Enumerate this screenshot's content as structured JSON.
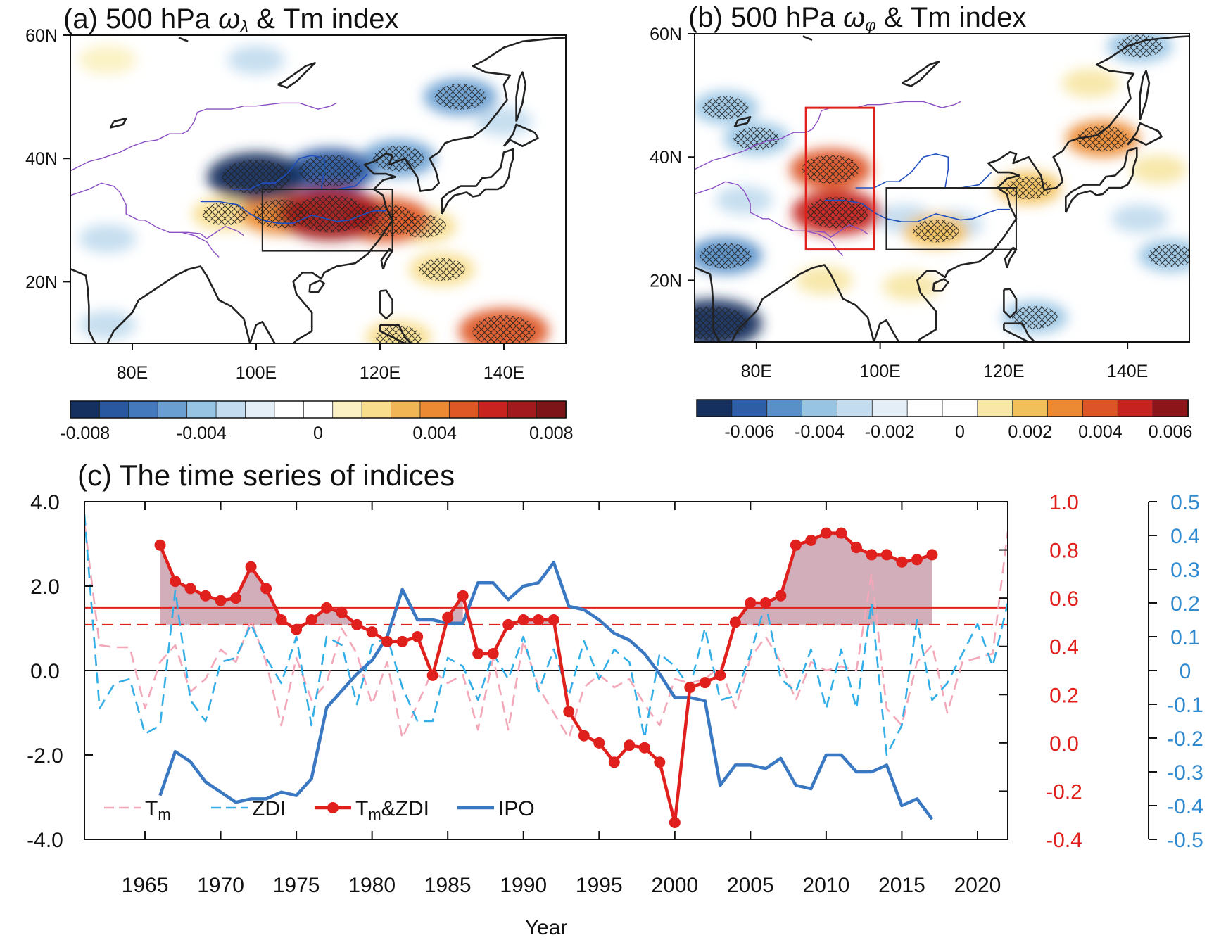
{
  "chart_data": [
    {
      "type": "heatmap",
      "panel": "a",
      "title": "(a) 500 hPa ωλ & Tm index",
      "title_prefix": "(a) 500 hPa ",
      "title_symbol": "ω",
      "title_subscript": "λ",
      "title_suffix": " & Tm index",
      "xlim": [
        70,
        150
      ],
      "ylim": [
        10,
        60
      ],
      "xticks": [
        {
          "value": 80,
          "label": "80E"
        },
        {
          "value": 100,
          "label": "100E"
        },
        {
          "value": 120,
          "label": "120E"
        },
        {
          "value": 140,
          "label": "140E"
        }
      ],
      "yticks": [
        {
          "value": 20,
          "label": "20N"
        },
        {
          "value": 40,
          "label": "40N"
        },
        {
          "value": 60,
          "label": "60N"
        }
      ],
      "colorbar": {
        "levels": [
          -0.008,
          -0.007,
          -0.006,
          -0.005,
          -0.004,
          -0.003,
          -0.002,
          -0.001,
          0,
          0.001,
          0.002,
          0.003,
          0.004,
          0.005,
          0.006,
          0.007,
          0.008
        ],
        "labels": [
          {
            "value": -0.008,
            "label": "-0.008"
          },
          {
            "value": -0.004,
            "label": "-0.004"
          },
          {
            "value": 0,
            "label": "0"
          },
          {
            "value": 0.004,
            "label": "0.004"
          },
          {
            "value": 0.008,
            "label": "0.008"
          }
        ],
        "colors": [
          "#15305e",
          "#2a58a0",
          "#4479bd",
          "#6a9fd2",
          "#98c4e4",
          "#c3dcef",
          "#e3eef7",
          "#ffffff",
          "#ffffff",
          "#fbf1c2",
          "#f8dd8c",
          "#f2b555",
          "#eb8a32",
          "#de5826",
          "#c9231f",
          "#a31a1e",
          "#7c1418"
        ]
      },
      "boxes": [
        {
          "lon": [
            101,
            122
          ],
          "lat": [
            25,
            35
          ],
          "color": "#222222"
        }
      ],
      "features": [
        {
          "lon": 112,
          "lat": 31,
          "value": 0.008
        },
        {
          "lon": 104,
          "lat": 31,
          "value": 0.005
        },
        {
          "lon": 121,
          "lat": 30,
          "value": 0.006
        },
        {
          "lon": 95,
          "lat": 31,
          "value": 0.003
        },
        {
          "lon": 127,
          "lat": 29,
          "value": 0.003
        },
        {
          "lon": 130,
          "lat": 22,
          "value": 0.003
        },
        {
          "lon": 140,
          "lat": 12,
          "value": 0.006
        },
        {
          "lon": 123,
          "lat": 11,
          "value": 0.003
        },
        {
          "lon": 76,
          "lat": 56,
          "value": 0.002
        },
        {
          "lon": 100,
          "lat": 37,
          "value": -0.007
        },
        {
          "lon": 112,
          "lat": 38,
          "value": -0.006
        },
        {
          "lon": 123,
          "lat": 40,
          "value": -0.004
        },
        {
          "lon": 133,
          "lat": 50,
          "value": -0.004
        },
        {
          "lon": 140,
          "lat": 46,
          "value": -0.002
        },
        {
          "lon": 76,
          "lat": 27,
          "value": -0.002
        },
        {
          "lon": 76,
          "lat": 13,
          "value": -0.002
        },
        {
          "lon": 100,
          "lat": 56,
          "value": -0.002
        }
      ]
    },
    {
      "type": "heatmap",
      "panel": "b",
      "title": "(b) 500 hPa ωφ & Tm index",
      "title_prefix": "(b) 500 hPa ",
      "title_symbol": "ω",
      "title_subscript": "φ",
      "title_suffix": " & Tm index",
      "xlim": [
        70,
        150
      ],
      "ylim": [
        10,
        60
      ],
      "xticks": [
        {
          "value": 80,
          "label": "80E"
        },
        {
          "value": 100,
          "label": "100E"
        },
        {
          "value": 120,
          "label": "120E"
        },
        {
          "value": 140,
          "label": "140E"
        }
      ],
      "yticks": [
        {
          "value": 20,
          "label": "20N"
        },
        {
          "value": 40,
          "label": "40N"
        },
        {
          "value": 60,
          "label": "60N"
        }
      ],
      "colorbar": {
        "levels": [
          -0.007,
          -0.006,
          -0.005,
          -0.004,
          -0.003,
          -0.002,
          -0.001,
          0,
          0.001,
          0.002,
          0.003,
          0.004,
          0.005,
          0.006,
          0.007
        ],
        "labels": [
          {
            "value": -0.006,
            "label": "-0.006"
          },
          {
            "value": -0.004,
            "label": "-0.004"
          },
          {
            "value": -0.002,
            "label": "-0.002"
          },
          {
            "value": 0,
            "label": "0"
          },
          {
            "value": 0.002,
            "label": "0.002"
          },
          {
            "value": 0.004,
            "label": "0.004"
          },
          {
            "value": 0.006,
            "label": "0.006"
          }
        ],
        "colors": [
          "#15305e",
          "#2d5ea6",
          "#5a90c8",
          "#98c4e4",
          "#c3dcef",
          "#e3eef7",
          "#ffffff",
          "#ffffff",
          "#f8e7a6",
          "#f2c05b",
          "#eb8a32",
          "#dc5427",
          "#c52220",
          "#8c1519"
        ]
      },
      "boxes": [
        {
          "lon": [
            88,
            99
          ],
          "lat": [
            25,
            48
          ],
          "color": "#e0201c"
        },
        {
          "lon": [
            101,
            122
          ],
          "lat": [
            25,
            35
          ],
          "color": "#222222"
        }
      ],
      "features": [
        {
          "lon": 92,
          "lat": 38,
          "value": 0.005
        },
        {
          "lon": 93,
          "lat": 31,
          "value": 0.006
        },
        {
          "lon": 91,
          "lat": 20,
          "value": 0.002
        },
        {
          "lon": 109,
          "lat": 28,
          "value": 0.003
        },
        {
          "lon": 105,
          "lat": 19,
          "value": 0.002
        },
        {
          "lon": 124,
          "lat": 35,
          "value": 0.003
        },
        {
          "lon": 136,
          "lat": 43,
          "value": 0.004
        },
        {
          "lon": 134,
          "lat": 52,
          "value": 0.002
        },
        {
          "lon": 145,
          "lat": 38,
          "value": 0.002
        },
        {
          "lon": 73,
          "lat": 13,
          "value": -0.007
        },
        {
          "lon": 75,
          "lat": 24,
          "value": -0.004
        },
        {
          "lon": 75,
          "lat": 48,
          "value": -0.003
        },
        {
          "lon": 80,
          "lat": 43,
          "value": -0.003
        },
        {
          "lon": 112,
          "lat": 29,
          "value": -0.002
        },
        {
          "lon": 104,
          "lat": 30,
          "value": -0.002
        },
        {
          "lon": 142,
          "lat": 58,
          "value": -0.003
        },
        {
          "lon": 147,
          "lat": 24,
          "value": -0.003
        },
        {
          "lon": 142,
          "lat": 30,
          "value": -0.002
        },
        {
          "lon": 125,
          "lat": 14,
          "value": -0.003
        },
        {
          "lon": 78,
          "lat": 33,
          "value": -0.002
        }
      ]
    },
    {
      "type": "line",
      "panel": "c",
      "title": "(c) The time series of indices",
      "xlabel": "Year",
      "xlim": [
        1961,
        2022
      ],
      "xticks": [
        1965,
        1970,
        1975,
        1980,
        1985,
        1990,
        1995,
        2000,
        2005,
        2010,
        2015,
        2020
      ],
      "y_left": {
        "lim": [
          -4,
          4
        ],
        "ticks": [
          "4.0",
          "2.0",
          "0.0",
          "-2.0",
          "-4.0"
        ],
        "tick_values": [
          4,
          2,
          0,
          -2,
          -4
        ],
        "color": "#111111"
      },
      "y_right1": {
        "lim": [
          -0.4,
          1.0
        ],
        "ticks": [
          "1.0",
          "0.8",
          "0.6",
          "0.4",
          "0.2",
          "0.0",
          "-0.2",
          "-0.4"
        ],
        "tick_values": [
          1.0,
          0.8,
          0.6,
          0.4,
          0.2,
          0.0,
          -0.2,
          -0.4
        ],
        "color": "#e0201c"
      },
      "y_right2": {
        "lim": [
          -0.5,
          0.5
        ],
        "ticks": [
          "0.5",
          "0.4",
          "0.3",
          "0.2",
          "0.1",
          "0",
          "-0.1",
          "-0.2",
          "-0.3",
          "-0.4",
          "-0.5"
        ],
        "tick_values": [
          0.5,
          0.4,
          0.3,
          0.2,
          0.1,
          0,
          -0.1,
          -0.2,
          -0.3,
          -0.4,
          -0.5
        ],
        "color": "#2f8ad0"
      },
      "reference_lines": [
        {
          "axis": "right1",
          "value": 0.56,
          "style": "solid",
          "color": "#e0201c"
        },
        {
          "axis": "right1",
          "value": 0.49,
          "style": "dashed",
          "color": "#e0201c"
        }
      ],
      "shading_threshold": 0.49,
      "series": [
        {
          "name": "Tm",
          "axis": "left",
          "style": "dashed",
          "color": "#f2a8b8",
          "x": [
            1961,
            1962,
            1963,
            1964,
            1965,
            1966,
            1967,
            1968,
            1969,
            1970,
            1971,
            1972,
            1973,
            1974,
            1975,
            1976,
            1977,
            1978,
            1979,
            1980,
            1981,
            1982,
            1983,
            1984,
            1985,
            1986,
            1987,
            1988,
            1989,
            1990,
            1991,
            1992,
            1993,
            1994,
            1995,
            1996,
            1997,
            1998,
            1999,
            2000,
            2001,
            2002,
            2003,
            2004,
            2005,
            2006,
            2007,
            2008,
            2009,
            2010,
            2011,
            2012,
            2013,
            2014,
            2015,
            2016,
            2017,
            2018,
            2019,
            2020,
            2021,
            2022
          ],
          "values": [
            3.5,
            0.6,
            0.55,
            0.55,
            -0.9,
            0.2,
            0.6,
            -0.5,
            -0.2,
            0.5,
            0.2,
            1.2,
            0.2,
            -1.3,
            0.3,
            -0.7,
            -0.3,
            1.0,
            0.4,
            -0.8,
            0.2,
            -1.6,
            -0.8,
            0.0,
            -0.3,
            -0.1,
            -1.4,
            0.3,
            -1.4,
            0.7,
            -0.4,
            -1.0,
            -1.6,
            -0.4,
            -0.1,
            -0.4,
            -0.2,
            -0.8,
            -1.3,
            -0.2,
            -0.3,
            -0.2,
            0.1,
            -0.9,
            0.3,
            0.8,
            0.2,
            -0.7,
            0.2,
            0.0,
            0.1,
            0.0,
            2.3,
            -0.9,
            -1.3,
            0.2,
            0.6,
            -1.0,
            0.2,
            0.3,
            0.4,
            3.3
          ]
        },
        {
          "name": "ZDI",
          "axis": "left",
          "style": "dashed",
          "color": "#33aee6",
          "x": [
            1961,
            1962,
            1963,
            1964,
            1965,
            1966,
            1967,
            1968,
            1969,
            1970,
            1971,
            1972,
            1973,
            1974,
            1975,
            1976,
            1977,
            1978,
            1979,
            1980,
            1981,
            1982,
            1983,
            1984,
            1985,
            1986,
            1987,
            1988,
            1989,
            1990,
            1991,
            1992,
            1993,
            1994,
            1995,
            1996,
            1997,
            1998,
            1999,
            2000,
            2001,
            2002,
            2003,
            2004,
            2005,
            2006,
            2007,
            2008,
            2009,
            2010,
            2011,
            2012,
            2013,
            2014,
            2015,
            2016,
            2017,
            2018,
            2019,
            2020,
            2021,
            2022
          ],
          "values": [
            3.7,
            -0.9,
            -0.3,
            -0.2,
            -1.5,
            -1.3,
            1.9,
            -0.7,
            -1.2,
            0.2,
            0.3,
            1.1,
            0.3,
            -0.3,
            0.8,
            -1.3,
            0.8,
            0.6,
            -0.8,
            0.6,
            0.8,
            -0.4,
            -1.2,
            -1.2,
            0.3,
            0.1,
            -0.7,
            0.4,
            -0.2,
            0.8,
            -0.5,
            0.5,
            -0.6,
            0.7,
            -0.2,
            0.5,
            0.2,
            -1.6,
            0.4,
            0.1,
            -0.4,
            1.0,
            -0.7,
            -0.6,
            0.4,
            1.6,
            -0.2,
            -0.5,
            0.5,
            -0.9,
            0.5,
            -0.9,
            1.6,
            -2.0,
            -1.3,
            1.2,
            -0.7,
            -0.3,
            0.4,
            1.1,
            0.1,
            1.6
          ]
        },
        {
          "name": "Tm&ZDI",
          "axis": "right1",
          "style": "solid-markers",
          "color": "#e0201c",
          "x": [
            1966,
            1967,
            1968,
            1969,
            1970,
            1971,
            1972,
            1973,
            1974,
            1975,
            1976,
            1977,
            1978,
            1979,
            1980,
            1981,
            1982,
            1983,
            1984,
            1985,
            1986,
            1987,
            1988,
            1989,
            1990,
            1991,
            1992,
            1993,
            1994,
            1995,
            1996,
            1997,
            1998,
            1999,
            2000,
            2001,
            2002,
            2003,
            2004,
            2005,
            2006,
            2007,
            2008,
            2009,
            2010,
            2011,
            2012,
            2013,
            2014,
            2015,
            2016,
            2017
          ],
          "values": [
            0.82,
            0.67,
            0.64,
            0.61,
            0.59,
            0.6,
            0.73,
            0.64,
            0.51,
            0.47,
            0.51,
            0.56,
            0.54,
            0.49,
            0.46,
            0.42,
            0.42,
            0.44,
            0.28,
            0.52,
            0.61,
            0.37,
            0.37,
            0.49,
            0.51,
            0.51,
            0.51,
            0.13,
            0.03,
            0.0,
            -0.08,
            -0.01,
            -0.02,
            -0.08,
            -0.33,
            0.23,
            0.25,
            0.28,
            0.5,
            0.58,
            0.58,
            0.61,
            0.82,
            0.84,
            0.87,
            0.87,
            0.81,
            0.78,
            0.78,
            0.75,
            0.76,
            0.78
          ]
        },
        {
          "name": "IPO",
          "axis": "right2",
          "style": "solid",
          "color": "#3a78c2",
          "x": [
            1966,
            1967,
            1968,
            1969,
            1970,
            1971,
            1972,
            1973,
            1974,
            1975,
            1976,
            1977,
            1978,
            1979,
            1980,
            1981,
            1982,
            1983,
            1984,
            1985,
            1986,
            1987,
            1988,
            1989,
            1990,
            1991,
            1992,
            1993,
            1994,
            1995,
            1996,
            1997,
            1998,
            1999,
            2000,
            2001,
            2002,
            2003,
            2004,
            2005,
            2006,
            2007,
            2008,
            2009,
            2010,
            2011,
            2012,
            2013,
            2014,
            2015,
            2016,
            2017
          ],
          "values": [
            -0.37,
            -0.24,
            -0.27,
            -0.33,
            -0.36,
            -0.39,
            -0.38,
            -0.38,
            -0.36,
            -0.37,
            -0.32,
            -0.11,
            -0.06,
            -0.01,
            0.03,
            0.1,
            0.24,
            0.15,
            0.15,
            0.14,
            0.14,
            0.26,
            0.26,
            0.21,
            0.25,
            0.26,
            0.32,
            0.19,
            0.18,
            0.15,
            0.11,
            0.09,
            0.05,
            -0.01,
            -0.08,
            -0.08,
            -0.09,
            -0.34,
            -0.28,
            -0.28,
            -0.29,
            -0.26,
            -0.34,
            -0.35,
            -0.25,
            -0.25,
            -0.3,
            -0.3,
            -0.28,
            -0.4,
            -0.38,
            -0.44
          ]
        }
      ],
      "legend": {
        "placement": "bottom-left",
        "entries": [
          {
            "name": "Tm",
            "label_main": "T",
            "label_sub": "m"
          },
          {
            "name": "ZDI",
            "label_main": "ZDI",
            "label_sub": ""
          },
          {
            "name": "Tm&ZDI",
            "label_main": "T",
            "label_sub": "m",
            "label_rest": "&ZDI"
          },
          {
            "name": "IPO",
            "label_main": "IPO",
            "label_sub": ""
          }
        ]
      }
    }
  ]
}
